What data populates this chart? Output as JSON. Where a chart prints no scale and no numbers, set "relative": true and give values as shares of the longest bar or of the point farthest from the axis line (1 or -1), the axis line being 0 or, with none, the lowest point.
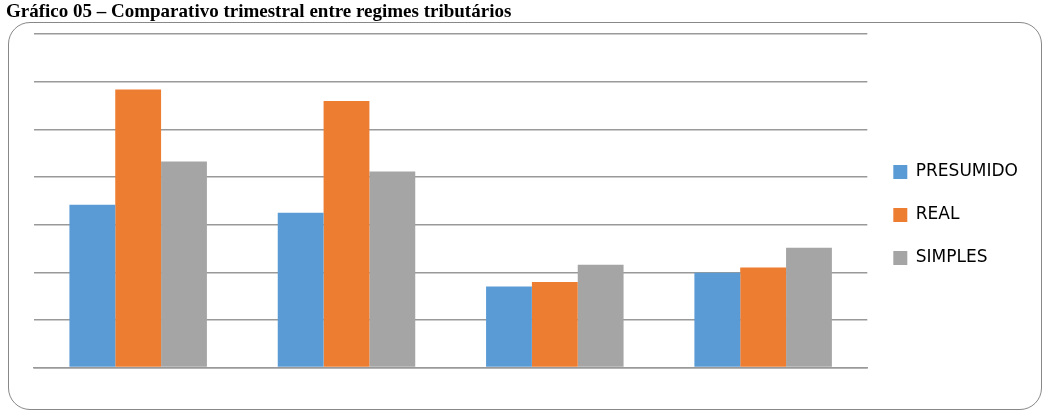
{
  "chart_data": {
    "type": "bar",
    "title": "Gráfico 05 – Comparativo trimestral entre regimes tributários",
    "categories": [
      null,
      null,
      null,
      null
    ],
    "relative": true,
    "grid": "y",
    "legend": "right",
    "series": [
      {
        "name": "PRESUMIDO",
        "color": "#5b9bd5",
        "values": [
          0.586,
          0.557,
          0.292,
          0.341
        ]
      },
      {
        "name": "REAL",
        "color": "#ed7d31",
        "values": [
          1,
          0.959,
          0.308,
          0.36
        ]
      },
      {
        "name": "SIMPLES",
        "color": "#a5a5a5",
        "values": [
          0.741,
          0.705,
          0.37,
          0.431
        ]
      }
    ]
  }
}
